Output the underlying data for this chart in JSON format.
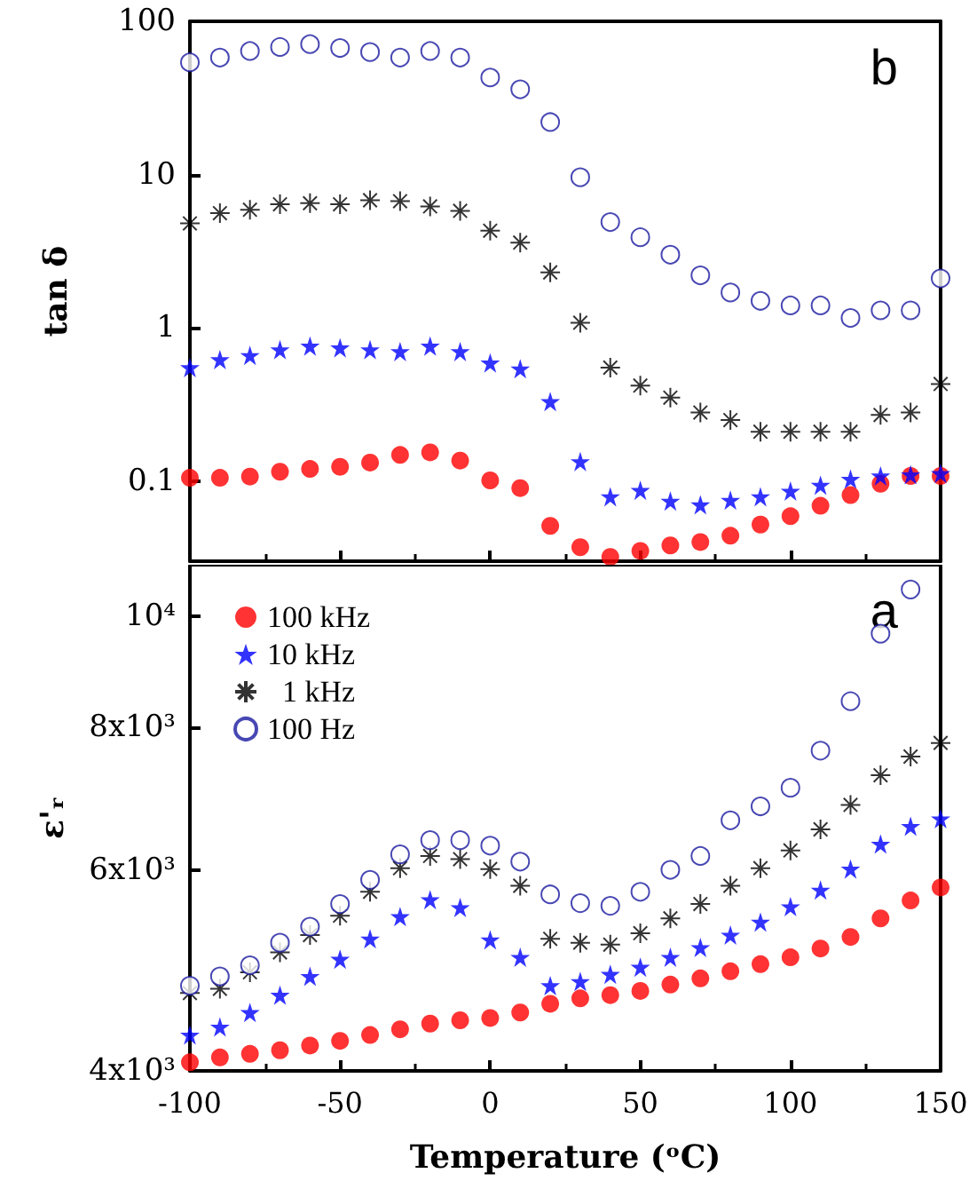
{
  "chart_data": [
    {
      "type": "scatter",
      "ylabel": "tan δ",
      "annotations": [
        "b"
      ],
      "log": "y",
      "legend": false,
      "tick_labels": "y",
      "x": [
        -100,
        -90,
        -80,
        -70,
        -60,
        -50,
        -40,
        -30,
        -20,
        -10,
        0,
        10,
        20,
        30,
        40,
        50,
        60,
        70,
        80,
        90,
        100,
        110,
        120,
        130,
        140,
        150
      ],
      "xlim": [
        -100,
        150
      ],
      "xticks": [
        -100,
        -50,
        0,
        50,
        100,
        150
      ],
      "ylim": [
        0.03,
        100
      ],
      "yticks": [
        0.1,
        1,
        10,
        100
      ],
      "series": [
        {
          "color": "#ff0000",
          "marker": "circle",
          "values": [
            0.105,
            0.105,
            0.107,
            0.115,
            0.12,
            0.124,
            0.132,
            0.148,
            0.154,
            0.136,
            0.101,
            0.09,
            0.051,
            0.037,
            0.032,
            0.035,
            0.038,
            0.04,
            0.044,
            0.052,
            0.059,
            0.069,
            0.081,
            0.096,
            0.108,
            0.108
          ]
        },
        {
          "color": "#0000ff",
          "marker": "star",
          "values": [
            0.55,
            0.62,
            0.66,
            0.72,
            0.76,
            0.74,
            0.72,
            0.7,
            0.76,
            0.7,
            0.59,
            0.54,
            0.33,
            0.134,
            0.079,
            0.087,
            0.074,
            0.07,
            0.075,
            0.079,
            0.086,
            0.094,
            0.103,
            0.108,
            0.11,
            0.112
          ]
        },
        {
          "color": "#000000",
          "marker": "cross",
          "values": [
            4.8,
            5.6,
            5.9,
            6.4,
            6.5,
            6.4,
            6.8,
            6.7,
            6.2,
            5.8,
            4.3,
            3.6,
            2.3,
            1.08,
            0.55,
            0.42,
            0.35,
            0.28,
            0.25,
            0.21,
            0.21,
            0.21,
            0.21,
            0.27,
            0.28,
            0.43
          ]
        },
        {
          "color": "#1a1aa0",
          "marker": "open circle",
          "values": [
            54,
            58,
            64,
            68,
            71,
            67,
            63,
            58,
            64,
            58,
            43,
            36,
            22,
            9.6,
            4.9,
            3.9,
            3.0,
            2.2,
            1.7,
            1.5,
            1.4,
            1.4,
            1.16,
            1.3,
            1.3,
            2.1
          ]
        }
      ]
    },
    {
      "type": "scatter",
      "xlabel": "Temperature (ᵒC)",
      "ylabel": "ε'ᵣ",
      "annotations": [
        "a"
      ],
      "log": "y",
      "legend": "top left",
      "x": [
        -100,
        -90,
        -80,
        -70,
        -60,
        -50,
        -40,
        -30,
        -20,
        -10,
        0,
        10,
        20,
        30,
        40,
        50,
        60,
        70,
        80,
        90,
        100,
        110,
        120,
        130,
        140,
        150
      ],
      "xlim": [
        -100,
        150
      ],
      "xticks": [
        -100,
        -50,
        0,
        50,
        100,
        150
      ],
      "ylim": [
        4000,
        11100
      ],
      "yticks": [
        {
          "value": 4000,
          "label": "4x10³"
        },
        {
          "value": 6000,
          "label": "6x10³"
        },
        {
          "value": 8000,
          "label": "8x10³"
        },
        {
          "value": 10000,
          "label": "10⁴"
        }
      ],
      "series": [
        {
          "name": "100 kHz",
          "color": "#ff0000",
          "marker": "circle",
          "values": [
            4070,
            4110,
            4140,
            4170,
            4210,
            4250,
            4300,
            4350,
            4400,
            4430,
            4450,
            4500,
            4580,
            4630,
            4660,
            4700,
            4760,
            4820,
            4890,
            4960,
            5030,
            5120,
            5240,
            5440,
            5640,
            5790
          ]
        },
        {
          "name": "10 kHz",
          "color": "#0000ff",
          "marker": "star",
          "values": [
            4300,
            4370,
            4500,
            4660,
            4840,
            5010,
            5220,
            5460,
            5650,
            5560,
            5210,
            5030,
            4750,
            4790,
            4860,
            4930,
            5030,
            5130,
            5260,
            5400,
            5570,
            5760,
            6010,
            6320,
            6550,
            6650
          ]
        },
        {
          "name": "  1 kHz",
          "color": "#000000",
          "marker": "cross",
          "values": [
            4680,
            4720,
            4880,
            5080,
            5260,
            5470,
            5740,
            6020,
            6170,
            6130,
            6010,
            5810,
            5220,
            5180,
            5160,
            5280,
            5440,
            5600,
            5810,
            6020,
            6240,
            6510,
            6840,
            7260,
            7540,
            7750
          ]
        },
        {
          "name": "100 Hz",
          "color": "#1a1aa0",
          "marker": "open circle",
          "values": [
            4750,
            4840,
            4950,
            5180,
            5350,
            5600,
            5880,
            6190,
            6370,
            6370,
            6300,
            6100,
            5710,
            5610,
            5580,
            5740,
            6000,
            6170,
            6630,
            6820,
            7080,
            7630,
            8430,
            9660,
            10560,
            null
          ]
        }
      ]
    }
  ]
}
